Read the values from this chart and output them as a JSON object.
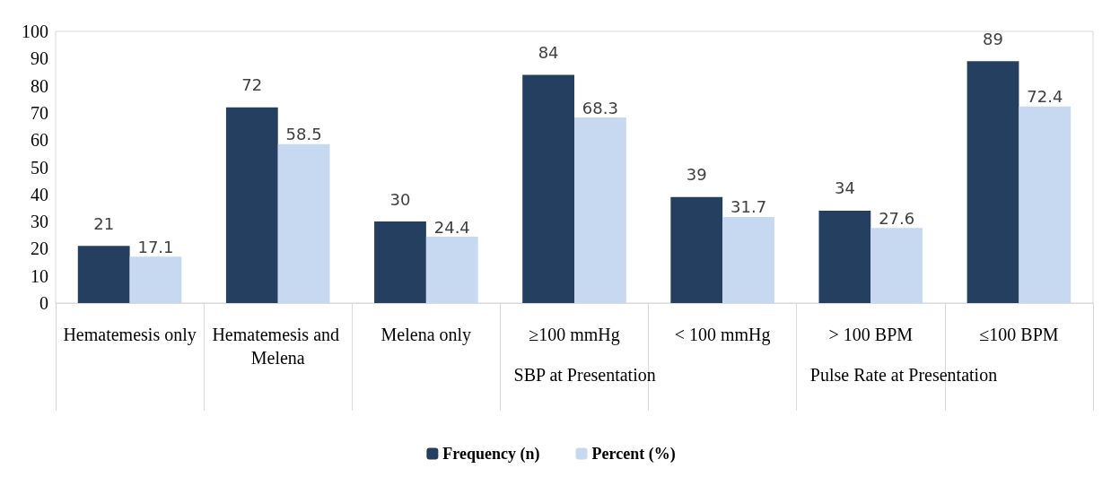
{
  "chart_data": {
    "type": "bar",
    "categories": [
      "Hematemesis only",
      "Hematemesis and Melena",
      "Melena only",
      "≥100 mmHg",
      "< 100 mmHg",
      "> 100 BPM",
      "≤100 BPM"
    ],
    "series": [
      {
        "name": "Frequency (n)",
        "color": "#243f60",
        "values": [
          21,
          72,
          30,
          84,
          39,
          34,
          89
        ]
      },
      {
        "name": "Percent (%)",
        "color": "#c6d9f1",
        "values": [
          17.1,
          58.5,
          24.4,
          68.3,
          31.7,
          27.6,
          72.4
        ]
      }
    ],
    "annotations": [
      "SBP at Presentation",
      "Pulse Rate at Presentation"
    ],
    "ylim": [
      0,
      100
    ],
    "yticks": [
      0,
      10,
      20,
      30,
      40,
      50,
      60,
      70,
      80,
      90,
      100
    ],
    "grid": false,
    "legend": "bottom",
    "data_labels": true
  }
}
